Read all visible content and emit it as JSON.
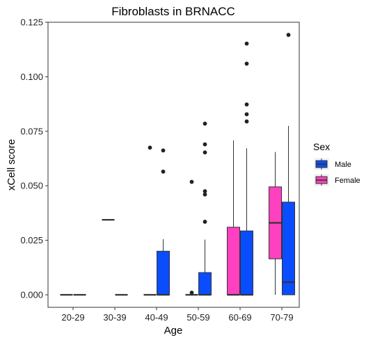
{
  "chart_data": {
    "type": "box",
    "title": "Fibroblasts in BRNACC",
    "xlabel": "Age",
    "ylabel": "xCell score",
    "ylim": [
      -0.003,
      0.125
    ],
    "yticks": [
      0.0,
      0.025,
      0.05,
      0.075,
      0.1,
      0.125
    ],
    "ytick_labels": [
      "0.000",
      "0.025",
      "0.050",
      "0.075",
      "0.100",
      "0.125"
    ],
    "categories": [
      "20-29",
      "30-39",
      "40-49",
      "50-59",
      "60-69",
      "70-79"
    ],
    "grid": false,
    "legend": {
      "title": "Sex",
      "position": "right",
      "entries": [
        {
          "name": "Male",
          "color": "#0a4dff"
        },
        {
          "name": "Female",
          "color": "#ff40c0"
        }
      ]
    },
    "series": [
      {
        "name": "Female",
        "color": "#ff40c0",
        "boxes": [
          {
            "category": "20-29",
            "min": 0,
            "q1": 0,
            "median": 0,
            "q3": 0,
            "max": 0,
            "outliers": []
          },
          {
            "category": "30-39",
            "min": 0.0344,
            "q1": 0.0344,
            "median": 0.0344,
            "q3": 0.0344,
            "max": 0.0344,
            "outliers": []
          },
          {
            "category": "40-49",
            "min": 0,
            "q1": 0,
            "median": 0,
            "q3": 0,
            "max": 0,
            "outliers": [
              0.0675
            ]
          },
          {
            "category": "50-59",
            "min": 0,
            "q1": 0,
            "median": 0,
            "q3": 0,
            "max": 0,
            "outliers": [
              0.0518,
              0.001
            ]
          },
          {
            "category": "60-69",
            "min": 0,
            "q1": 0,
            "median": 0,
            "q3": 0.031,
            "max": 0.0708,
            "outliers": []
          },
          {
            "category": "70-79",
            "min": 0,
            "q1": 0.0165,
            "median": 0.033,
            "q3": 0.0495,
            "max": 0.0655,
            "outliers": []
          }
        ]
      },
      {
        "name": "Male",
        "color": "#0a4dff",
        "boxes": [
          {
            "category": "20-29",
            "min": 0,
            "q1": 0,
            "median": 0,
            "q3": 0,
            "max": 0,
            "outliers": []
          },
          {
            "category": "30-39",
            "min": 0,
            "q1": 0,
            "median": 0,
            "q3": 0,
            "max": 0,
            "outliers": []
          },
          {
            "category": "40-49",
            "min": 0,
            "q1": 0,
            "median": 0,
            "q3": 0.02,
            "max": 0.0255,
            "outliers": [
              0.0662,
              0.0565
            ]
          },
          {
            "category": "50-59",
            "min": 0,
            "q1": 0,
            "median": 0,
            "q3": 0.0102,
            "max": 0.0253,
            "outliers": [
              0.0785,
              0.069,
              0.0653,
              0.0475,
              0.046,
              0.0335
            ]
          },
          {
            "category": "60-69",
            "min": 0,
            "q1": 0,
            "median": 0,
            "q3": 0.0293,
            "max": 0.0672,
            "outliers": [
              0.1152,
              0.106,
              0.0873,
              0.0828,
              0.0795
            ]
          },
          {
            "category": "70-79",
            "min": 0,
            "q1": 0,
            "median": 0.0058,
            "q3": 0.0425,
            "max": 0.0775,
            "outliers": [
              0.1192
            ]
          }
        ]
      }
    ]
  }
}
